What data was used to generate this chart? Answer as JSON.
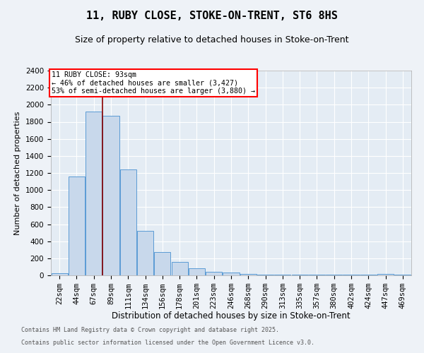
{
  "title1": "11, RUBY CLOSE, STOKE-ON-TRENT, ST6 8HS",
  "title2": "Size of property relative to detached houses in Stoke-on-Trent",
  "xlabel": "Distribution of detached houses by size in Stoke-on-Trent",
  "ylabel": "Number of detached properties",
  "bin_labels": [
    "22sqm",
    "44sqm",
    "67sqm",
    "89sqm",
    "111sqm",
    "134sqm",
    "156sqm",
    "178sqm",
    "201sqm",
    "223sqm",
    "246sqm",
    "268sqm",
    "290sqm",
    "313sqm",
    "335sqm",
    "357sqm",
    "380sqm",
    "402sqm",
    "424sqm",
    "447sqm",
    "469sqm"
  ],
  "bar_values": [
    22,
    1160,
    1920,
    1870,
    1240,
    520,
    275,
    155,
    80,
    45,
    35,
    15,
    10,
    8,
    5,
    5,
    5,
    5,
    5,
    20,
    5
  ],
  "bar_color": "#c8d8eb",
  "bar_edge_color": "#5b9bd5",
  "red_line_index": 3,
  "property_label": "11 RUBY CLOSE: 93sqm",
  "annotation_line1": "← 46% of detached houses are smaller (3,427)",
  "annotation_line2": "53% of semi-detached houses are larger (3,880) →",
  "ylim": [
    0,
    2400
  ],
  "yticks": [
    0,
    200,
    400,
    600,
    800,
    1000,
    1200,
    1400,
    1600,
    1800,
    2000,
    2200,
    2400
  ],
  "footer1": "Contains HM Land Registry data © Crown copyright and database right 2025.",
  "footer2": "Contains public sector information licensed under the Open Government Licence v3.0.",
  "bg_color": "#eef2f7",
  "plot_bg_color": "#e4ecf4",
  "grid_color": "#ffffff",
  "title1_fontsize": 11,
  "title2_fontsize": 9,
  "ylabel_fontsize": 8,
  "xlabel_fontsize": 8.5,
  "tick_fontsize": 7.5,
  "footer_fontsize": 6.0
}
